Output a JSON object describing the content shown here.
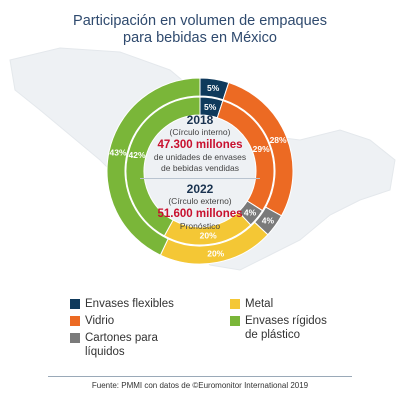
{
  "chart_data": {
    "type": "donut",
    "title": [
      "Participación en volumen de empaques",
      "para bebidas en México"
    ],
    "categories": [
      "Envases flexibles",
      "Vidrio",
      "Cartones para líquidos",
      "Metal",
      "Envases rígidos de plástico"
    ],
    "colors": {
      "Envases flexibles": "#0f3a5c",
      "Vidrio": "#ec6a23",
      "Cartones para líquidos": "#7a7a7a",
      "Metal": "#f4c735",
      "Envases rígidos de plástico": "#7ab639"
    },
    "series": [
      {
        "name": "2018",
        "ring": "inner",
        "values": [
          5,
          29,
          4,
          20,
          42
        ]
      },
      {
        "name": "2022",
        "ring": "outer",
        "values": [
          5,
          28,
          4,
          20,
          43
        ]
      }
    ],
    "value_suffix": "%"
  },
  "center": {
    "year_inner": "2018",
    "label_inner": "(Círculo interno)",
    "value_inner": "47.300 millones",
    "desc_inner_1": "de unidades de envases",
    "desc_inner_2": "de bebidas vendidas",
    "year_outer": "2022",
    "label_outer": "(Círculo externo)",
    "value_outer": "51.600 millones",
    "desc_outer": "Pronóstico"
  },
  "legend": {
    "flexibles": "Envases flexibles",
    "vidrio": "Vidrio",
    "cartones_1": "Cartones para",
    "cartones_2": "líquidos",
    "metal": "Metal",
    "plastico_1": "Envases rígidos",
    "plastico_2": "de plástico"
  },
  "footer": "Fuente: PMMI con datos de ©Euromonitor International 2019"
}
